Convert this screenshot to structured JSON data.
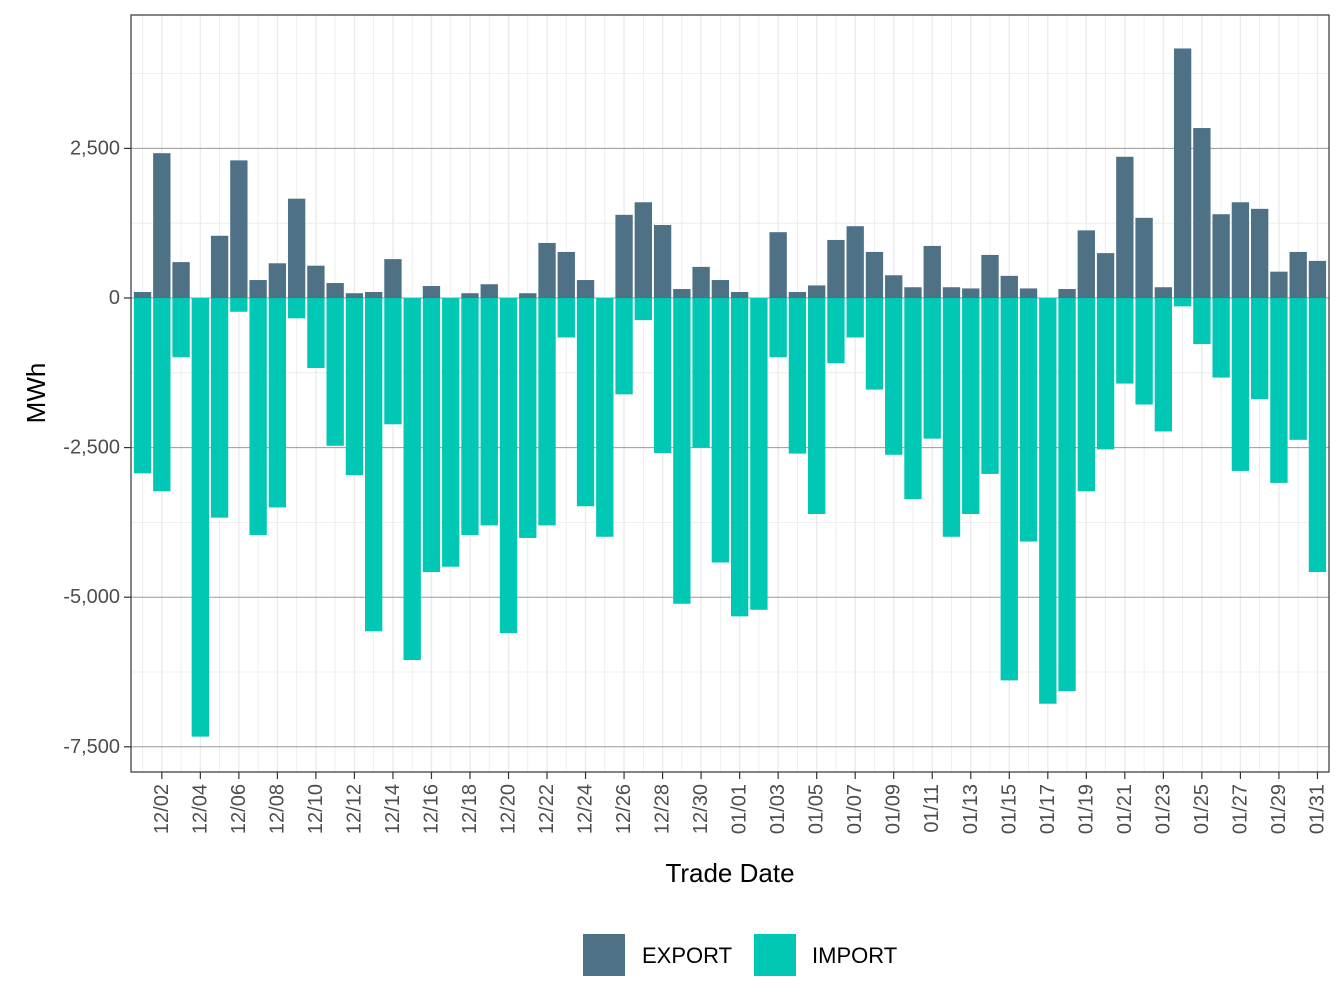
{
  "chart_data": {
    "type": "bar",
    "stacked_diverging": true,
    "xlabel": "Trade Date",
    "ylabel": "MWh",
    "ylim": [
      -7900,
      4700
    ],
    "y_ticks": [
      {
        "value": 2500,
        "label": "2,500"
      },
      {
        "value": 0,
        "label": "0"
      },
      {
        "value": -2500,
        "label": "-2,500"
      },
      {
        "value": -5000,
        "label": "-5,000"
      },
      {
        "value": -7500,
        "label": "-7,500"
      }
    ],
    "y_minor_ticks": [
      3750,
      1250,
      -1250,
      -3750,
      -6250
    ],
    "categories": [
      "12/01",
      "12/02",
      "12/03",
      "12/04",
      "12/05",
      "12/06",
      "12/07",
      "12/08",
      "12/09",
      "12/10",
      "12/11",
      "12/12",
      "12/13",
      "12/14",
      "12/15",
      "12/16",
      "12/17",
      "12/18",
      "12/19",
      "12/20",
      "12/21",
      "12/22",
      "12/23",
      "12/24",
      "12/25",
      "12/26",
      "12/27",
      "12/28",
      "12/29",
      "12/30",
      "12/31",
      "01/01",
      "01/02",
      "01/03",
      "01/04",
      "01/05",
      "01/06",
      "01/07",
      "01/08",
      "01/09",
      "01/10",
      "01/11",
      "01/12",
      "01/13",
      "01/14",
      "01/15",
      "01/16",
      "01/17",
      "01/18",
      "01/19",
      "01/20",
      "01/21",
      "01/22",
      "01/23",
      "01/24",
      "01/25",
      "01/26",
      "01/27",
      "01/28",
      "01/29",
      "01/30",
      "01/31"
    ],
    "x_tick_labels": [
      "12/02",
      "12/04",
      "12/06",
      "12/08",
      "12/10",
      "12/12",
      "12/14",
      "12/16",
      "12/18",
      "12/20",
      "12/22",
      "12/24",
      "12/26",
      "12/28",
      "12/30",
      "01/01",
      "01/03",
      "01/05",
      "01/07",
      "01/09",
      "01/11",
      "01/13",
      "01/15",
      "01/17",
      "01/19",
      "01/21",
      "01/23",
      "01/25",
      "01/27",
      "01/29",
      "01/31"
    ],
    "series": [
      {
        "name": "EXPORT",
        "color": "#4E7186",
        "values": [
          100,
          2420,
          600,
          0,
          1040,
          2300,
          300,
          580,
          1660,
          540,
          250,
          80,
          100,
          650,
          0,
          200,
          0,
          80,
          230,
          0,
          80,
          920,
          770,
          300,
          0,
          1390,
          1600,
          1220,
          150,
          520,
          300,
          100,
          0,
          1100,
          100,
          210,
          970,
          1200,
          770,
          380,
          180,
          870,
          180,
          160,
          720,
          370,
          160,
          0,
          150,
          1130,
          750,
          2360,
          1340,
          180,
          4170,
          2840,
          1400,
          1600,
          1490,
          440,
          770,
          620
        ]
      },
      {
        "name": "IMPORT",
        "color": "#00C8B4",
        "values": [
          -2930,
          -3230,
          -990,
          -7330,
          -3670,
          -230,
          -3960,
          -3500,
          -340,
          -1170,
          -2470,
          -2960,
          -5570,
          -2110,
          -6050,
          -4580,
          -4490,
          -3960,
          -3800,
          -5600,
          -4010,
          -3800,
          -660,
          -3480,
          -3990,
          -1610,
          -370,
          -2590,
          -5110,
          -2500,
          -4420,
          -5320,
          -5210,
          -990,
          -2600,
          -3610,
          -1090,
          -660,
          -1530,
          -2620,
          -3360,
          -2350,
          -3990,
          -3610,
          -2940,
          -6390,
          -4070,
          -6780,
          -6570,
          -3230,
          -2530,
          -1430,
          -1780,
          -2230,
          -140,
          -770,
          -1330,
          -2890,
          -1690,
          -3090,
          -2370,
          -4580
        ]
      }
    ],
    "legend": {
      "position": "bottom",
      "entries": [
        {
          "label": "EXPORT",
          "color": "#4E7186"
        },
        {
          "label": "IMPORT",
          "color": "#00C8B4"
        }
      ]
    }
  }
}
